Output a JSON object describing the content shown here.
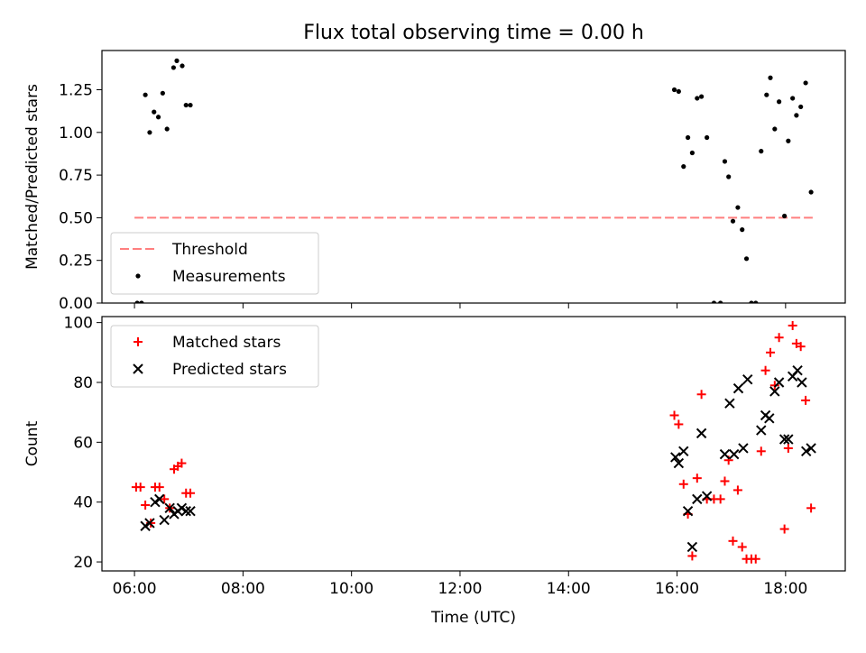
{
  "title": "Flux total observing time = 0.00 h",
  "xlabel": "Time (UTC)",
  "colors": {
    "threshold": "#ff7f7f",
    "measurements": "#000000",
    "matched": "#ff0000",
    "predicted": "#000000"
  },
  "chart_data": [
    {
      "type": "scatter",
      "title": "Flux total observing time = 0.00 h",
      "xlabel": "",
      "ylabel": "Matched/Predicted stars",
      "xlim": [
        5.4,
        19.1
      ],
      "ylim": [
        0,
        1.48
      ],
      "xticks": [
        6,
        8,
        10,
        12,
        14,
        16,
        18
      ],
      "yticks": [
        0,
        0.25,
        0.5,
        0.75,
        1.0,
        1.25
      ],
      "ytick_labels": [
        "0.00",
        "0.25",
        "0.50",
        "0.75",
        "1.00",
        "1.25"
      ],
      "legend": {
        "placement": "lower-left",
        "entries": [
          "Threshold",
          "Measurements"
        ]
      },
      "threshold": {
        "name": "Threshold",
        "x": [
          6.0,
          18.5
        ],
        "y": 0.5
      },
      "series": [
        {
          "name": "Measurements",
          "x": [
            6.05,
            6.13,
            6.2,
            6.28,
            6.36,
            6.44,
            6.52,
            6.6,
            6.72,
            6.78,
            6.88,
            6.95,
            7.03,
            15.95,
            16.03,
            16.12,
            16.2,
            16.28,
            16.37,
            16.45,
            16.55,
            16.68,
            16.8,
            16.88,
            16.95,
            17.03,
            17.12,
            17.2,
            17.28,
            17.37,
            17.45,
            17.55,
            17.65,
            17.72,
            17.8,
            17.88,
            17.98,
            18.05,
            18.13,
            18.2,
            18.28,
            18.37,
            18.47
          ],
          "y": [
            0.0,
            0.0,
            1.22,
            1.0,
            1.12,
            1.09,
            1.23,
            1.02,
            1.38,
            1.42,
            1.39,
            1.16,
            1.16,
            1.25,
            1.24,
            0.8,
            0.97,
            0.88,
            1.2,
            1.21,
            0.97,
            0.0,
            0.0,
            0.83,
            0.74,
            0.48,
            0.56,
            0.43,
            0.26,
            0.0,
            0.0,
            0.89,
            1.22,
            1.32,
            1.02,
            1.18,
            0.51,
            0.95,
            1.2,
            1.1,
            1.15,
            1.29,
            0.65
          ]
        }
      ]
    },
    {
      "type": "scatter",
      "title": "",
      "xlabel": "Time (UTC)",
      "ylabel": "Count",
      "xlim": [
        5.4,
        19.1
      ],
      "ylim": [
        17,
        102
      ],
      "xticks": [
        6,
        8,
        10,
        12,
        14,
        16,
        18
      ],
      "xtick_labels": [
        "06:00",
        "08:00",
        "10:00",
        "12:00",
        "14:00",
        "16:00",
        "18:00"
      ],
      "yticks": [
        20,
        40,
        60,
        80,
        100
      ],
      "ytick_labels": [
        "20",
        "40",
        "60",
        "80",
        "100"
      ],
      "legend": {
        "placement": "top-left",
        "entries": [
          "Matched stars",
          "Predicted stars"
        ]
      },
      "series": [
        {
          "name": "Matched stars",
          "marker": "plus",
          "x": [
            6.03,
            6.11,
            6.2,
            6.3,
            6.38,
            6.46,
            6.55,
            6.65,
            6.73,
            6.8,
            6.87,
            6.95,
            7.03,
            15.95,
            16.03,
            16.12,
            16.2,
            16.28,
            16.37,
            16.45,
            16.55,
            16.68,
            16.8,
            16.88,
            16.95,
            17.03,
            17.12,
            17.2,
            17.28,
            17.37,
            17.45,
            17.55,
            17.63,
            17.72,
            17.8,
            17.88,
            17.98,
            18.05,
            18.13,
            18.2,
            18.28,
            18.37,
            18.47
          ],
          "y": [
            45,
            45,
            39,
            33,
            45,
            45,
            41,
            38,
            51,
            52,
            53,
            43,
            43,
            69,
            66,
            46,
            36,
            22,
            48,
            76,
            41,
            41,
            41,
            47,
            54,
            27,
            44,
            25,
            21,
            21,
            21,
            57,
            84,
            90,
            79,
            95,
            31,
            58,
            99,
            93,
            92,
            74,
            38
          ]
        },
        {
          "name": "Predicted stars",
          "marker": "x",
          "x": [
            6.2,
            6.28,
            6.38,
            6.46,
            6.55,
            6.65,
            6.73,
            6.8,
            6.87,
            6.95,
            7.03,
            15.97,
            16.03,
            16.12,
            16.2,
            16.28,
            16.37,
            16.45,
            16.55,
            16.88,
            16.97,
            17.05,
            17.13,
            17.22,
            17.3,
            17.55,
            17.63,
            17.7,
            17.8,
            17.88,
            17.98,
            18.05,
            18.13,
            18.22,
            18.3,
            18.38,
            18.47
          ],
          "y": [
            32,
            33,
            40,
            41,
            34,
            38,
            36,
            37,
            38,
            37,
            37,
            55,
            53,
            57,
            37,
            25,
            41,
            63,
            42,
            56,
            73,
            56,
            78,
            58,
            81,
            64,
            69,
            68,
            77,
            80,
            61,
            61,
            82,
            84,
            80,
            57,
            58
          ]
        }
      ]
    }
  ]
}
